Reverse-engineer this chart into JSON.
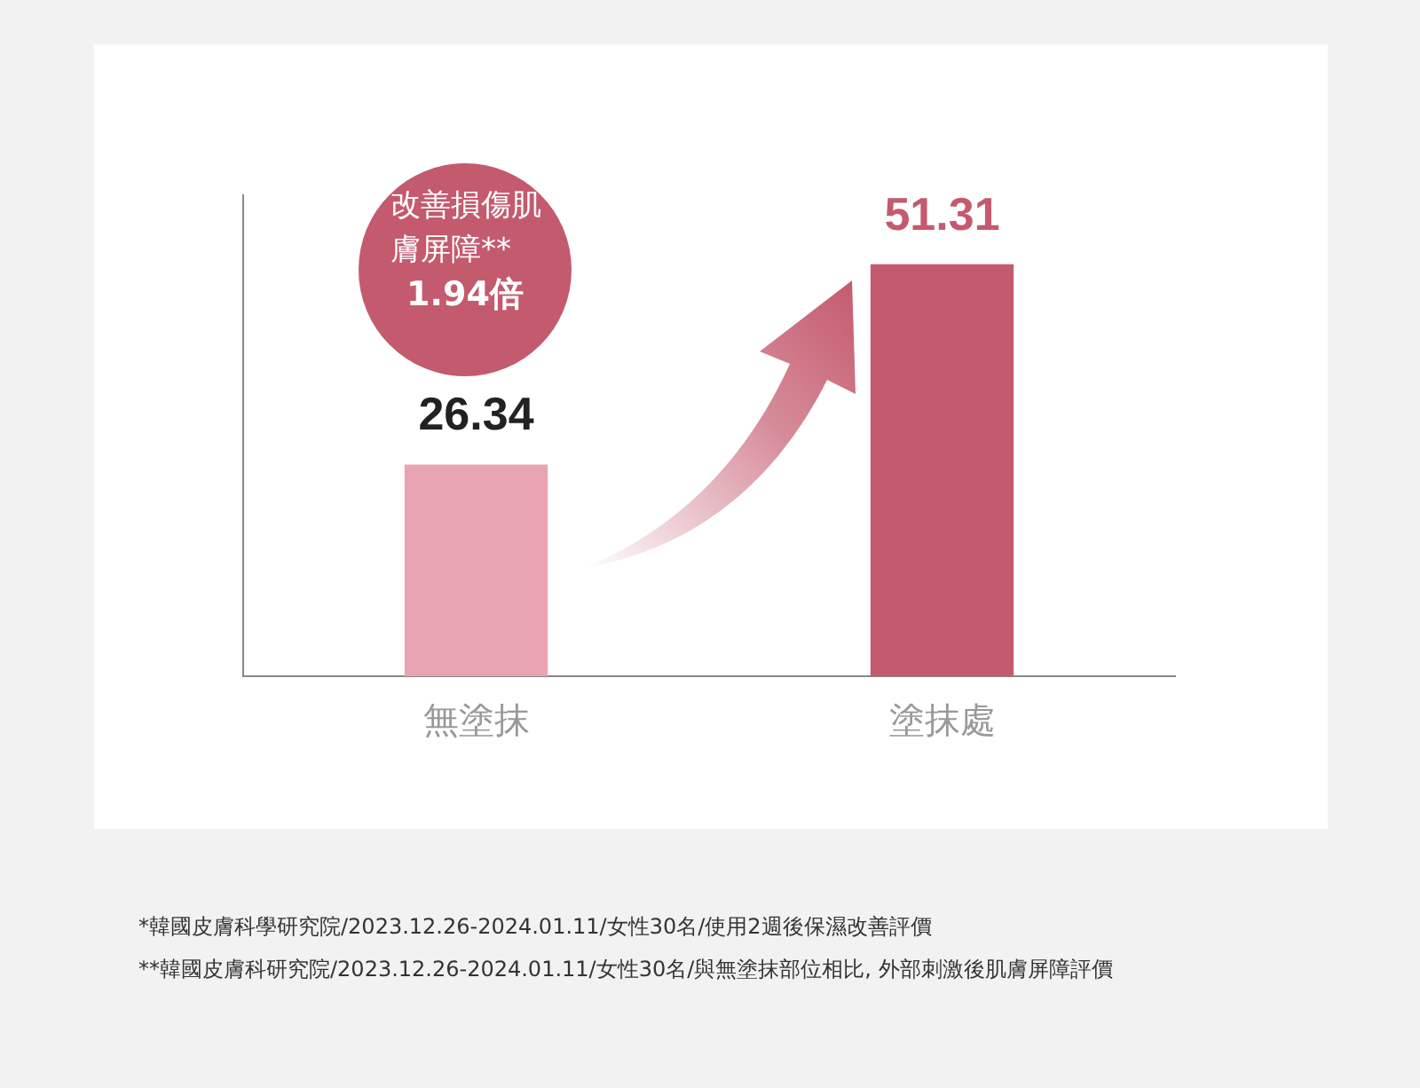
{
  "chart_data": {
    "type": "bar",
    "categories": [
      "無塗抹",
      "塗抹處"
    ],
    "values": [
      26.34,
      51.31
    ],
    "colors": [
      "#e8a4b0",
      "#c45a6e"
    ],
    "data_labels": true,
    "tick_labels": "x",
    "grid": false,
    "legend": false,
    "annotations": [
      "改善損傷肌膚屏障**",
      "1.94倍",
      "*韓國皮膚科學研究院/2023.12.26-2024.01.11/女性30名/使用2週後保濕改善評價",
      "**韓國皮膚科研究院/2023.12.26-2024.01.11/女性30名/與無塗抹部位相比, 外部刺激後肌膚屏障評價"
    ]
  }
}
